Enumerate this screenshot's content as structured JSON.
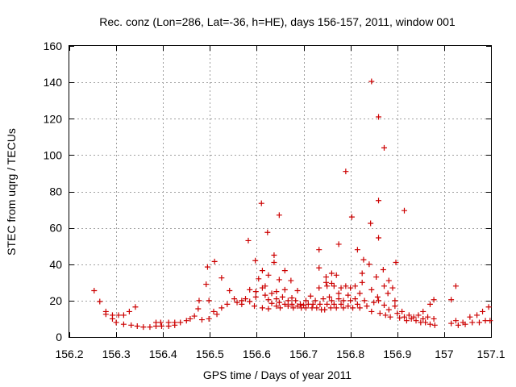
{
  "chart_data": {
    "type": "scatter",
    "title": "Rec. conz (Lon=286, Lat=-36, h=HE), days 156-157, 2011, window 001",
    "xlabel": "GPS time / Days of year 2011",
    "ylabel": "STEC from uqrg / TECUs",
    "xlim": [
      156.2,
      157.1
    ],
    "ylim": [
      0,
      160
    ],
    "xticks": [
      156.2,
      156.3,
      156.4,
      156.5,
      156.6,
      156.7,
      156.8,
      156.9,
      157,
      157.1
    ],
    "xtick_labels": [
      "156.2",
      "156.3",
      "156.4",
      "156.5",
      "156.6",
      "156.7",
      "156.8",
      "156.9",
      "157",
      "157.1"
    ],
    "yticks": [
      0,
      20,
      40,
      60,
      80,
      100,
      120,
      140,
      160
    ],
    "ytick_labels": [
      "0",
      "20",
      "40",
      "60",
      "80",
      "100",
      "120",
      "140",
      "160"
    ],
    "grid": true,
    "marker": "+",
    "color": "#cc0000",
    "series": [
      {
        "name": "STEC",
        "points": [
          [
            156.253,
            25.5
          ],
          [
            156.265,
            19.5
          ],
          [
            156.278,
            14
          ],
          [
            156.278,
            12.5
          ],
          [
            156.292,
            12
          ],
          [
            156.292,
            10
          ],
          [
            156.3,
            8
          ],
          [
            156.305,
            12
          ],
          [
            156.316,
            12
          ],
          [
            156.316,
            7
          ],
          [
            156.328,
            14
          ],
          [
            156.332,
            6.5
          ],
          [
            156.341,
            16.5
          ],
          [
            156.345,
            6
          ],
          [
            156.358,
            5.5
          ],
          [
            156.372,
            5.5
          ],
          [
            156.385,
            6
          ],
          [
            156.385,
            8
          ],
          [
            156.395,
            8
          ],
          [
            156.397,
            6
          ],
          [
            156.412,
            8
          ],
          [
            156.412,
            6
          ],
          [
            156.425,
            8
          ],
          [
            156.425,
            6.5
          ],
          [
            156.437,
            8
          ],
          [
            156.45,
            9
          ],
          [
            156.458,
            10
          ],
          [
            156.467,
            11.5
          ],
          [
            156.475,
            15.5
          ],
          [
            156.477,
            20
          ],
          [
            156.483,
            9.5
          ],
          [
            156.492,
            29
          ],
          [
            156.495,
            38.5
          ],
          [
            156.498,
            20
          ],
          [
            156.498,
            10
          ],
          [
            156.508,
            14
          ],
          [
            156.51,
            41.5
          ],
          [
            156.515,
            12.5
          ],
          [
            156.525,
            16
          ],
          [
            156.525,
            32.5
          ],
          [
            156.537,
            18
          ],
          [
            156.542,
            25.5
          ],
          [
            156.552,
            21
          ],
          [
            156.558,
            19
          ],
          [
            156.568,
            18
          ],
          [
            156.568,
            20
          ],
          [
            156.576,
            21
          ],
          [
            156.582,
            53
          ],
          [
            156.585,
            26
          ],
          [
            156.585,
            19.5
          ],
          [
            156.595,
            17
          ],
          [
            156.597,
            42
          ],
          [
            156.598,
            25
          ],
          [
            156.598,
            22
          ],
          [
            156.604,
            32
          ],
          [
            156.61,
            73.5
          ],
          [
            156.612,
            36.5
          ],
          [
            156.612,
            27
          ],
          [
            156.612,
            16
          ],
          [
            156.618,
            28
          ],
          [
            156.618,
            23
          ],
          [
            156.623,
            57.5
          ],
          [
            156.625,
            34
          ],
          [
            156.625,
            20.5
          ],
          [
            156.625,
            15.5
          ],
          [
            156.632,
            24
          ],
          [
            156.632,
            18.5
          ],
          [
            156.637,
            45
          ],
          [
            156.637,
            41
          ],
          [
            156.642,
            25
          ],
          [
            156.642,
            21
          ],
          [
            156.642,
            17
          ],
          [
            156.648,
            67
          ],
          [
            156.648,
            31.5
          ],
          [
            156.648,
            19
          ],
          [
            156.65,
            16
          ],
          [
            156.655,
            22
          ],
          [
            156.66,
            36.5
          ],
          [
            156.66,
            26
          ],
          [
            156.66,
            18
          ],
          [
            156.667,
            20
          ],
          [
            156.667,
            17
          ],
          [
            156.673,
            31
          ],
          [
            156.675,
            21.5
          ],
          [
            156.675,
            18
          ],
          [
            156.678,
            16
          ],
          [
            156.683,
            20
          ],
          [
            156.687,
            25.5
          ],
          [
            156.687,
            17
          ],
          [
            156.693,
            18
          ],
          [
            156.695,
            16
          ],
          [
            156.7,
            17.5
          ],
          [
            156.705,
            20
          ],
          [
            156.705,
            16
          ],
          [
            156.71,
            18
          ],
          [
            156.715,
            22.5
          ],
          [
            156.718,
            16
          ],
          [
            156.72,
            18
          ],
          [
            156.725,
            20
          ],
          [
            156.728,
            16
          ],
          [
            156.733,
            48
          ],
          [
            156.733,
            38
          ],
          [
            156.733,
            27
          ],
          [
            156.735,
            18
          ],
          [
            156.738,
            15
          ],
          [
            156.742,
            21
          ],
          [
            156.745,
            15
          ],
          [
            156.748,
            33
          ],
          [
            156.748,
            30
          ],
          [
            156.75,
            28
          ],
          [
            156.75,
            18
          ],
          [
            156.755,
            22
          ],
          [
            156.758,
            16
          ],
          [
            156.76,
            35
          ],
          [
            156.76,
            29.5
          ],
          [
            156.76,
            20
          ],
          [
            156.765,
            28
          ],
          [
            156.765,
            18
          ],
          [
            156.77,
            34
          ],
          [
            156.77,
            16
          ],
          [
            156.775,
            51
          ],
          [
            156.775,
            24
          ],
          [
            156.775,
            21
          ],
          [
            156.78,
            27
          ],
          [
            156.78,
            18
          ],
          [
            156.785,
            20
          ],
          [
            156.785,
            16
          ],
          [
            156.79,
            91
          ],
          [
            156.79,
            28
          ],
          [
            156.795,
            23
          ],
          [
            156.795,
            17
          ],
          [
            156.8,
            27
          ],
          [
            156.8,
            20
          ],
          [
            156.803,
            66
          ],
          [
            156.805,
            16
          ],
          [
            156.81,
            28
          ],
          [
            156.81,
            21
          ],
          [
            156.815,
            48
          ],
          [
            156.815,
            18
          ],
          [
            156.82,
            24
          ],
          [
            156.82,
            16
          ],
          [
            156.825,
            35
          ],
          [
            156.825,
            30
          ],
          [
            156.828,
            42.5
          ],
          [
            156.83,
            20
          ],
          [
            156.835,
            17
          ],
          [
            156.84,
            40
          ],
          [
            156.843,
            62.5
          ],
          [
            156.845,
            140.5
          ],
          [
            156.845,
            26
          ],
          [
            156.845,
            14
          ],
          [
            156.85,
            19
          ],
          [
            156.855,
            33
          ],
          [
            156.858,
            22
          ],
          [
            156.86,
            121
          ],
          [
            156.86,
            75
          ],
          [
            156.86,
            54.5
          ],
          [
            156.86,
            20
          ],
          [
            156.863,
            13
          ],
          [
            156.87,
            37
          ],
          [
            156.872,
            104
          ],
          [
            156.872,
            28
          ],
          [
            156.872,
            17.5
          ],
          [
            156.875,
            12
          ],
          [
            156.88,
            24
          ],
          [
            156.882,
            31
          ],
          [
            156.882,
            15
          ],
          [
            156.885,
            11
          ],
          [
            156.89,
            27
          ],
          [
            156.895,
            20
          ],
          [
            156.895,
            17
          ],
          [
            156.897,
            41
          ],
          [
            156.9,
            13
          ],
          [
            156.905,
            10.5
          ],
          [
            156.91,
            14
          ],
          [
            156.915,
            69.5
          ],
          [
            156.915,
            11
          ],
          [
            156.92,
            9
          ],
          [
            156.925,
            12
          ],
          [
            156.93,
            10
          ],
          [
            156.935,
            11
          ],
          [
            156.94,
            9
          ],
          [
            156.945,
            12
          ],
          [
            156.95,
            8
          ],
          [
            156.955,
            14
          ],
          [
            156.955,
            10
          ],
          [
            156.96,
            8
          ],
          [
            156.965,
            11
          ],
          [
            156.97,
            18
          ],
          [
            156.97,
            7
          ],
          [
            156.978,
            20.5
          ],
          [
            156.978,
            10
          ],
          [
            156.98,
            6.5
          ],
          [
            157.015,
            20.5
          ],
          [
            157.015,
            7.5
          ],
          [
            157.025,
            28
          ],
          [
            157.025,
            9
          ],
          [
            157.03,
            6.5
          ],
          [
            157.04,
            8
          ],
          [
            157.045,
            7
          ],
          [
            157.055,
            11
          ],
          [
            157.06,
            8
          ],
          [
            157.07,
            12
          ],
          [
            157.075,
            8
          ],
          [
            157.082,
            14
          ],
          [
            157.088,
            9
          ],
          [
            157.095,
            16.5
          ],
          [
            157.098,
            9
          ]
        ]
      }
    ]
  }
}
